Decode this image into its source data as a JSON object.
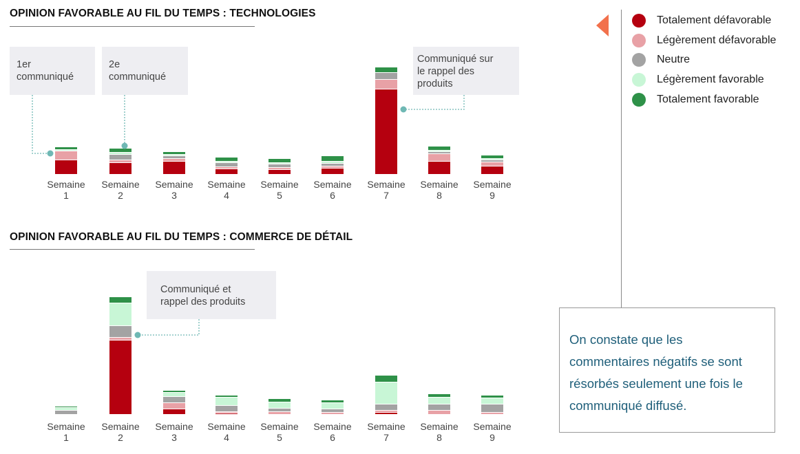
{
  "colors": {
    "totalement_defavorable": "#b5000f",
    "legerement_defavorable": "#e8a1a6",
    "neutre": "#a3a3a3",
    "legerement_favorable": "#c8f6d6",
    "totalement_favorable": "#2e9148",
    "callout_marker": "#6fb8b4",
    "accent_arrow": "#f2714c",
    "note_text": "#1f5f7a"
  },
  "legend": [
    {
      "label": "Totalement défavorable",
      "color_key": "totalement_defavorable"
    },
    {
      "label": "Légèrement défavorable",
      "color_key": "legerement_defavorable"
    },
    {
      "label": "Neutre",
      "color_key": "neutre"
    },
    {
      "label": "Légèrement favorable",
      "color_key": "legerement_favorable"
    },
    {
      "label": "Totalement favorable",
      "color_key": "totalement_favorable"
    }
  ],
  "note": "On constate que les commentaires négatifs se sont résorbés seulement une fois le communiqué diffusé.",
  "chart_data": [
    {
      "type": "bar",
      "stacked": true,
      "title": "OPINION FAVORABLE AU FIL DU TEMPS : TECHNOLOGIES",
      "categories": [
        "Semaine\n1",
        "Semaine\n2",
        "Semaine\n3",
        "Semaine\n4",
        "Semaine\n5",
        "Semaine\n6",
        "Semaine\n7",
        "Semaine\n8",
        "Semaine\n9"
      ],
      "series": [
        {
          "name": "Totalement défavorable",
          "values": [
            20,
            16,
            18,
            7,
            6,
            8,
            123,
            18,
            11
          ]
        },
        {
          "name": "Légèrement défavorable",
          "values": [
            12,
            3,
            3,
            2,
            2,
            2,
            13,
            10,
            5
          ]
        },
        {
          "name": "Neutre",
          "values": [
            0,
            7,
            3,
            5,
            4,
            3,
            9,
            2,
            2
          ]
        },
        {
          "name": "Légèrement favorable",
          "values": [
            1,
            2,
            1,
            1,
            1,
            2,
            0,
            1,
            1
          ]
        },
        {
          "name": "Totalement favorable",
          "values": [
            3,
            5,
            3,
            5,
            5,
            7,
            7,
            5,
            4
          ]
        }
      ],
      "annotations": [
        {
          "lines": [
            "1er",
            "communiqué"
          ],
          "category": 0
        },
        {
          "lines": [
            "2e",
            "communiqué"
          ],
          "category": 1
        },
        {
          "lines": [
            "Communiqué sur",
            "le rappel des",
            "produits"
          ],
          "category": 6
        }
      ]
    },
    {
      "type": "bar",
      "stacked": true,
      "title": "OPINION FAVORABLE AU FIL DU TEMPS : COMMERCE DE DÉTAIL",
      "categories": [
        "Semaine\n1",
        "Semaine\n2",
        "Semaine\n3",
        "Semaine\n4",
        "Semaine\n5",
        "Semaine\n6",
        "Semaine\n7",
        "Semaine\n8",
        "Semaine\n9"
      ],
      "series": [
        {
          "name": "Totalement défavorable",
          "values": [
            0,
            107,
            7,
            1,
            0,
            0,
            2,
            0,
            0
          ]
        },
        {
          "name": "Légèrement défavorable",
          "values": [
            0,
            3,
            8,
            1,
            3,
            2,
            2,
            5,
            2
          ]
        },
        {
          "name": "Neutre",
          "values": [
            5,
            16,
            8,
            8,
            4,
            4,
            8,
            8,
            11
          ]
        },
        {
          "name": "Légèrement favorable",
          "values": [
            3,
            32,
            5,
            11,
            8,
            8,
            31,
            9,
            8
          ]
        },
        {
          "name": "Totalement favorable",
          "values": [
            1,
            8,
            2,
            2,
            4,
            3,
            9,
            4,
            3
          ]
        }
      ],
      "annotations": [
        {
          "lines": [
            "Communiqué et",
            "rappel des produits"
          ],
          "category": 1
        }
      ]
    }
  ]
}
